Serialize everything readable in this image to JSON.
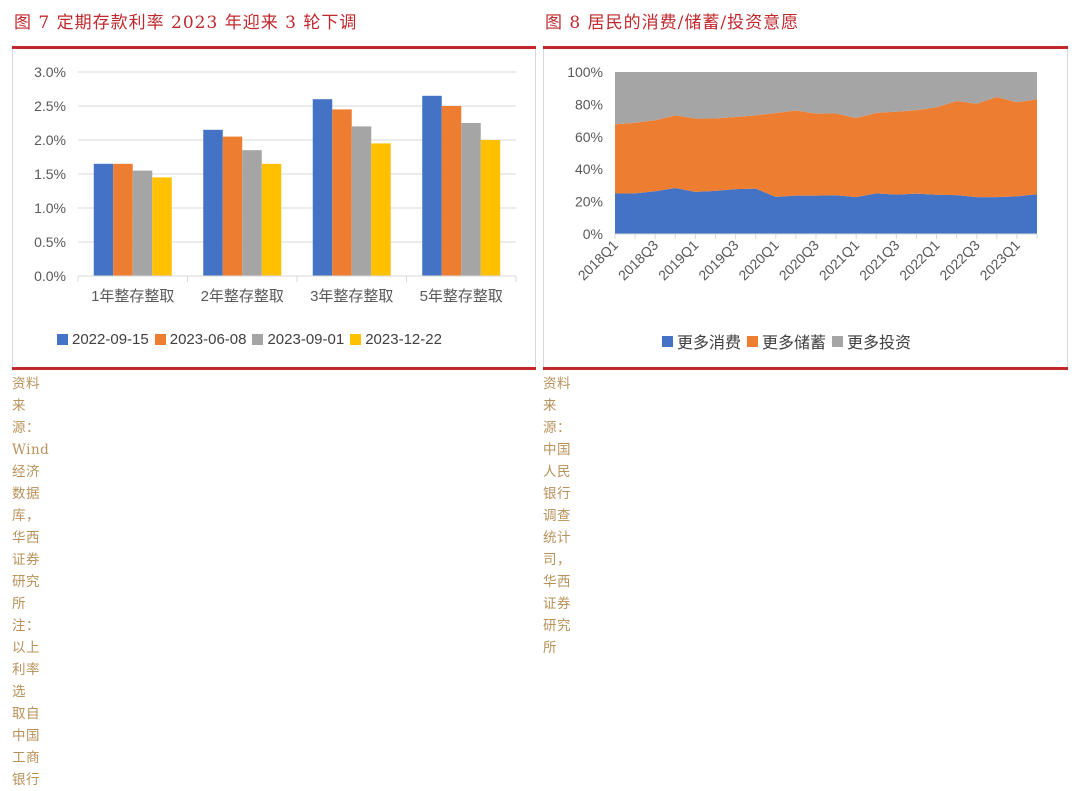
{
  "left_panel": {
    "title": "图 7  定期存款利率 2023 年迎来 3 轮下调",
    "source_line1": "资料来源：Wind 经济数据库，华西证券研究所 注：以上利率选",
    "source_line2": "取自中国工商银行"
  },
  "right_panel": {
    "title": "图 8  居民的消费/储蓄/投资意愿",
    "source_line1": "资料来源：中国人民银行调查统计司，华西证券研究所"
  },
  "colors": {
    "title_red": "#c0282d",
    "source_tan": "#b8925a",
    "blue": "#4472c4",
    "orange": "#ed7d31",
    "gray": "#a5a5a5",
    "yellow": "#ffc000"
  },
  "chart_data": [
    {
      "type": "bar",
      "title": "定期存款利率 2023 年迎来 3 轮下调",
      "categories": [
        "1年整存整取",
        "2年整存整取",
        "3年整存整取",
        "5年整存整取"
      ],
      "series": [
        {
          "name": "2022-09-15",
          "color": "#4472c4",
          "values": [
            1.65,
            2.15,
            2.6,
            2.65
          ]
        },
        {
          "name": "2023-06-08",
          "color": "#ed7d31",
          "values": [
            1.65,
            2.05,
            2.45,
            2.5
          ]
        },
        {
          "name": "2023-09-01",
          "color": "#a5a5a5",
          "values": [
            1.55,
            1.85,
            2.2,
            2.25
          ]
        },
        {
          "name": "2023-12-22",
          "color": "#ffc000",
          "values": [
            1.45,
            1.65,
            1.95,
            2.0
          ]
        }
      ],
      "ylabel": "",
      "xlabel": "",
      "ylim": [
        0,
        3.0
      ],
      "yticks": [
        "0.0%",
        "0.5%",
        "1.0%",
        "1.5%",
        "2.0%",
        "2.5%",
        "3.0%"
      ],
      "grid": true,
      "legend_position": "bottom"
    },
    {
      "type": "area",
      "stacked": true,
      "title": "居民的消费/储蓄/投资意愿",
      "x": [
        "2018Q1",
        "2018Q2",
        "2018Q3",
        "2018Q4",
        "2019Q1",
        "2019Q2",
        "2019Q3",
        "2019Q4",
        "2020Q1",
        "2020Q2",
        "2020Q3",
        "2020Q4",
        "2021Q1",
        "2021Q2",
        "2021Q3",
        "2021Q4",
        "2022Q1",
        "2022Q2",
        "2022Q3",
        "2022Q4",
        "2023Q1",
        "2023Q2"
      ],
      "xtick_labels": [
        "2018Q1",
        "2018Q3",
        "2019Q1",
        "2019Q3",
        "2020Q1",
        "2020Q3",
        "2021Q1",
        "2021Q3",
        "2022Q1",
        "2022Q3",
        "2023Q1"
      ],
      "series": [
        {
          "name": "更多消费",
          "color": "#4472c4",
          "values": [
            25.0,
            25.1,
            26.4,
            28.4,
            26.0,
            26.6,
            27.7,
            28.0,
            22.9,
            23.7,
            23.7,
            23.9,
            22.8,
            25.1,
            24.3,
            24.9,
            24.2,
            24.0,
            22.8,
            22.8,
            23.2,
            24.5
          ]
        },
        {
          "name": "更多储蓄",
          "color": "#ed7d31",
          "values": [
            42.7,
            43.6,
            43.8,
            44.8,
            45.2,
            44.7,
            44.5,
            45.2,
            51.8,
            52.5,
            50.6,
            50.5,
            48.8,
            49.7,
            51.2,
            51.6,
            54.0,
            58.1,
            57.6,
            61.8,
            58.1,
            58.6
          ]
        },
        {
          "name": "更多投资",
          "color": "#a5a5a5",
          "values": [
            32.3,
            31.3,
            29.8,
            26.8,
            28.8,
            28.7,
            27.8,
            26.8,
            25.3,
            23.8,
            25.7,
            25.6,
            28.4,
            25.2,
            24.5,
            23.5,
            21.8,
            17.9,
            19.6,
            15.4,
            18.7,
            16.9
          ]
        }
      ],
      "ylim": [
        0,
        100
      ],
      "yticks": [
        "0%",
        "20%",
        "40%",
        "60%",
        "80%",
        "100%"
      ],
      "grid": false,
      "legend_position": "bottom"
    }
  ]
}
